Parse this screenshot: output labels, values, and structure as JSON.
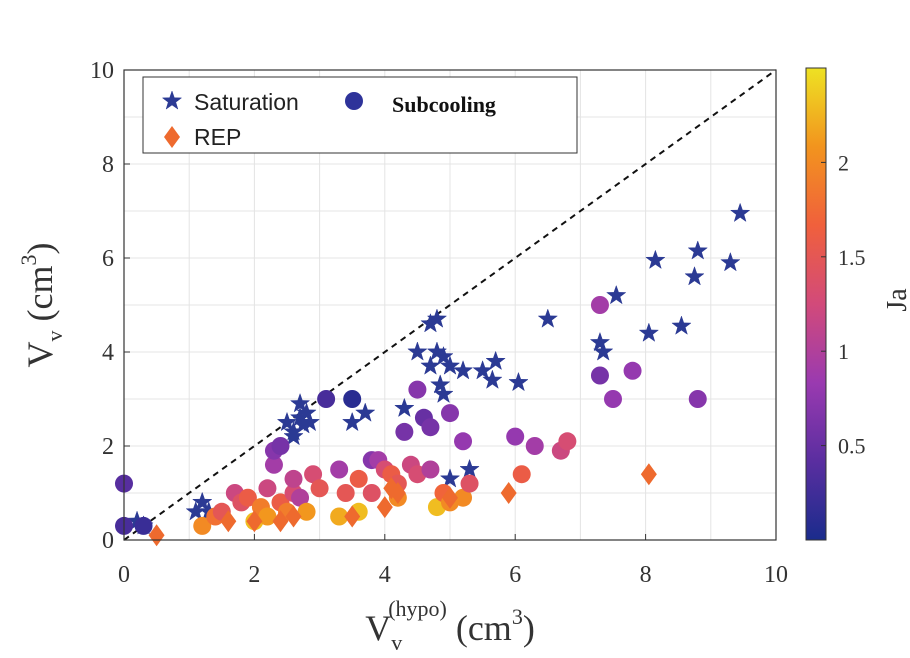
{
  "chart_data": {
    "type": "scatter",
    "xlabel": {
      "base": "V",
      "sub": "v",
      "sup": "(hypo)",
      "unit_pre": " (cm",
      "unit_sup": "3",
      "unit_post": ")"
    },
    "ylabel": {
      "base": "V",
      "sub": "v",
      "unit_pre": " (cm",
      "unit_sup": "3",
      "unit_post": ")"
    },
    "xlim": [
      0,
      10
    ],
    "ylim": [
      0,
      10
    ],
    "xticks": [
      "0",
      "2",
      "4",
      "6",
      "8",
      "10"
    ],
    "yticks": [
      "0",
      "2",
      "4",
      "6",
      "8",
      "10"
    ],
    "grid": true,
    "reference_line": {
      "style": "dashed",
      "x": [
        0,
        10
      ],
      "y": [
        0,
        10
      ]
    },
    "colorbar": {
      "label": "Ja",
      "range": [
        0,
        2.5
      ],
      "ticks": [
        "0.5",
        "1",
        "1.5",
        "2"
      ],
      "tick_values": [
        0.5,
        1,
        1.5,
        2
      ],
      "colors": [
        "#1a2c8c",
        "#5a2ea0",
        "#9a3ab0",
        "#d24a7a",
        "#f0603c",
        "#f2941e",
        "#eee223"
      ]
    },
    "legend": {
      "position": "top-left",
      "entries": [
        {
          "label": "Saturation",
          "marker": "star",
          "color": "#2b3a94"
        },
        {
          "label": "Subcooling",
          "marker": "circle",
          "color": "#2e339a"
        },
        {
          "label": "REP",
          "marker": "diamond",
          "color": "#ee6a2e"
        }
      ]
    },
    "series": [
      {
        "name": "Saturation",
        "marker": "star",
        "color": "#2b3a94",
        "points": [
          [
            0.2,
            0.4
          ],
          [
            0.3,
            0.3
          ],
          [
            1.1,
            0.6
          ],
          [
            1.2,
            0.8
          ],
          [
            1.3,
            0.6
          ],
          [
            2.6,
            2.3
          ],
          [
            2.7,
            2.6
          ],
          [
            2.7,
            2.9
          ],
          [
            2.8,
            2.7
          ],
          [
            2.6,
            2.2
          ],
          [
            2.75,
            2.45
          ],
          [
            2.85,
            2.5
          ],
          [
            2.5,
            2.5
          ],
          [
            3.5,
            2.5
          ],
          [
            3.7,
            2.7
          ],
          [
            4.3,
            2.8
          ],
          [
            4.5,
            4.0
          ],
          [
            4.7,
            4.6
          ],
          [
            4.8,
            4.7
          ],
          [
            4.7,
            3.7
          ],
          [
            4.8,
            4.0
          ],
          [
            4.85,
            3.3
          ],
          [
            4.9,
            3.9
          ],
          [
            5.0,
            3.7
          ],
          [
            4.9,
            3.1
          ],
          [
            5.0,
            1.3
          ],
          [
            5.2,
            3.6
          ],
          [
            5.3,
            1.5
          ],
          [
            5.5,
            3.6
          ],
          [
            5.7,
            3.8
          ],
          [
            5.65,
            3.4
          ],
          [
            6.05,
            3.35
          ],
          [
            6.5,
            4.7
          ],
          [
            7.3,
            4.2
          ],
          [
            7.35,
            4.0
          ],
          [
            7.55,
            5.2
          ],
          [
            8.05,
            4.4
          ],
          [
            8.15,
            5.95
          ],
          [
            8.55,
            4.55
          ],
          [
            8.75,
            5.6
          ],
          [
            8.8,
            6.15
          ],
          [
            9.3,
            5.9
          ],
          [
            9.45,
            6.95
          ]
        ]
      },
      {
        "name": "Subcooling",
        "marker": "circle",
        "points": [
          [
            0.0,
            1.2,
            0.4
          ],
          [
            0.0,
            0.3,
            0.3
          ],
          [
            0.3,
            0.3,
            0.2
          ],
          [
            1.2,
            0.3,
            2.0
          ],
          [
            1.4,
            0.5,
            1.8
          ],
          [
            1.5,
            0.6,
            1.5
          ],
          [
            1.7,
            1.0,
            1.2
          ],
          [
            1.8,
            0.8,
            1.4
          ],
          [
            1.9,
            0.9,
            1.6
          ],
          [
            2.0,
            0.4,
            2.3
          ],
          [
            2.1,
            0.7,
            1.9
          ],
          [
            2.2,
            1.1,
            1.2
          ],
          [
            2.2,
            0.5,
            2.1
          ],
          [
            2.3,
            1.6,
            0.9
          ],
          [
            2.3,
            1.9,
            0.7
          ],
          [
            2.4,
            2.0,
            0.6
          ],
          [
            2.4,
            0.8,
            1.6
          ],
          [
            2.5,
            0.6,
            1.9
          ],
          [
            2.6,
            1.0,
            1.3
          ],
          [
            2.6,
            1.3,
            1.1
          ],
          [
            2.7,
            0.9,
            1.0
          ],
          [
            2.8,
            0.6,
            2.1
          ],
          [
            2.9,
            1.4,
            1.3
          ],
          [
            3.0,
            1.1,
            1.5
          ],
          [
            3.1,
            3.0,
            0.3
          ],
          [
            3.3,
            1.5,
            0.9
          ],
          [
            3.3,
            0.5,
            2.2
          ],
          [
            3.4,
            1.0,
            1.5
          ],
          [
            3.5,
            3.0,
            0.1
          ],
          [
            3.6,
            0.6,
            2.3
          ],
          [
            3.6,
            1.3,
            1.6
          ],
          [
            3.8,
            1.7,
            0.7
          ],
          [
            3.9,
            1.7,
            0.9
          ],
          [
            3.8,
            1.0,
            1.4
          ],
          [
            4.0,
            1.5,
            1.3
          ],
          [
            4.1,
            1.4,
            1.6
          ],
          [
            4.2,
            1.2,
            1.5
          ],
          [
            4.2,
            0.9,
            2.0
          ],
          [
            4.3,
            2.3,
            0.6
          ],
          [
            4.4,
            1.6,
            1.2
          ],
          [
            4.5,
            1.4,
            1.3
          ],
          [
            4.5,
            3.2,
            0.7
          ],
          [
            4.6,
            2.6,
            0.5
          ],
          [
            4.7,
            2.4,
            0.6
          ],
          [
            4.7,
            1.5,
            1.0
          ],
          [
            4.8,
            0.7,
            2.3
          ],
          [
            4.9,
            1.0,
            1.7
          ],
          [
            5.0,
            0.8,
            2.0
          ],
          [
            5.0,
            2.7,
            0.7
          ],
          [
            5.2,
            0.9,
            2.0
          ],
          [
            5.2,
            2.1,
            0.8
          ],
          [
            5.3,
            1.2,
            1.4
          ],
          [
            6.0,
            2.2,
            0.8
          ],
          [
            6.1,
            1.4,
            1.6
          ],
          [
            6.3,
            2.0,
            0.9
          ],
          [
            6.7,
            1.9,
            1.2
          ],
          [
            6.8,
            2.1,
            1.3
          ],
          [
            7.3,
            3.5,
            0.6
          ],
          [
            7.3,
            5.0,
            0.9
          ],
          [
            7.5,
            3.0,
            0.8
          ],
          [
            7.8,
            3.6,
            0.8
          ],
          [
            8.8,
            3.0,
            0.7
          ]
        ]
      },
      {
        "name": "REP",
        "marker": "diamond",
        "color": "#ee6a2e",
        "points": [
          [
            0.5,
            0.1
          ],
          [
            1.6,
            0.4
          ],
          [
            2.4,
            0.4
          ],
          [
            2.6,
            0.5
          ],
          [
            2.0,
            0.4
          ],
          [
            3.5,
            0.5
          ],
          [
            4.0,
            0.7
          ],
          [
            4.1,
            1.1
          ],
          [
            4.2,
            1.0
          ],
          [
            5.0,
            0.9
          ],
          [
            5.9,
            1.0
          ],
          [
            8.05,
            1.4
          ]
        ]
      }
    ]
  }
}
